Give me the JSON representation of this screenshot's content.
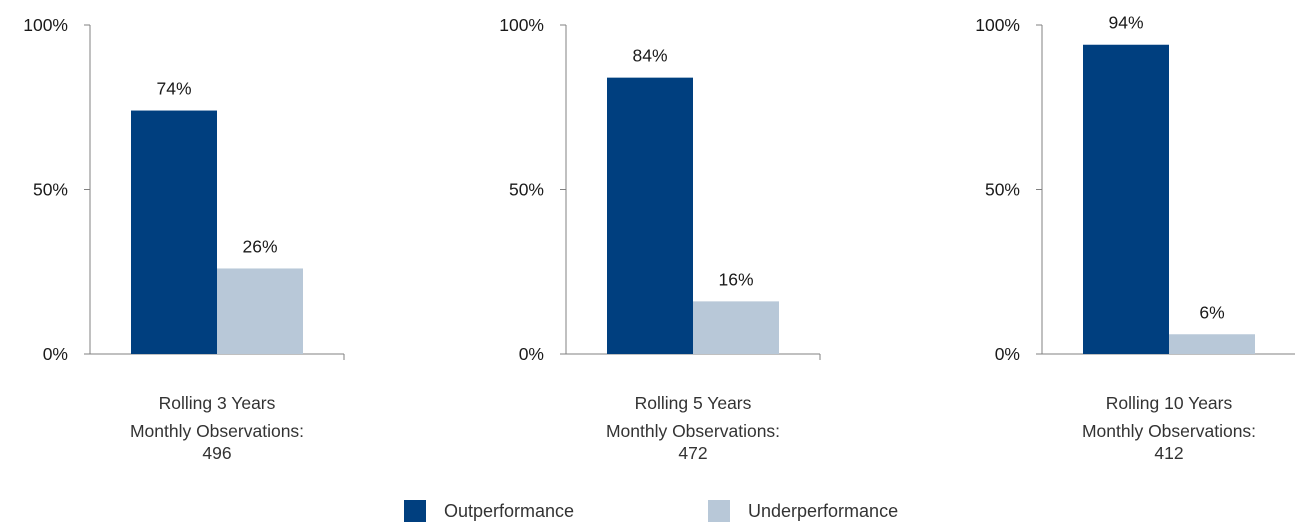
{
  "colors": {
    "outperformance": "#003f7f",
    "underperformance": "#b8c8d8",
    "axis": "#808080",
    "text": "#1a1a1a"
  },
  "legend": [
    {
      "label": "Outperformance",
      "color": "#003f7f"
    },
    {
      "label": "Underperformance",
      "color": "#b8c8d8"
    }
  ],
  "chart_data": [
    {
      "type": "bar",
      "categories": [
        "Outperformance",
        "Underperformance"
      ],
      "values": [
        74,
        26
      ],
      "data_labels": [
        "74%",
        "26%"
      ],
      "ylim": [
        0,
        100
      ],
      "yticks": [
        "0%",
        "50%",
        "100%"
      ],
      "xlabel": "Rolling 3 Years",
      "caption_line": "Monthly Observations:",
      "observations": "496"
    },
    {
      "type": "bar",
      "categories": [
        "Outperformance",
        "Underperformance"
      ],
      "values": [
        84,
        16
      ],
      "data_labels": [
        "84%",
        "16%"
      ],
      "ylim": [
        0,
        100
      ],
      "yticks": [
        "0%",
        "50%",
        "100%"
      ],
      "xlabel": "Rolling 5 Years",
      "caption_line": "Monthly Observations:",
      "observations": "472"
    },
    {
      "type": "bar",
      "categories": [
        "Outperformance",
        "Underperformance"
      ],
      "values": [
        94,
        6
      ],
      "data_labels": [
        "94%",
        "6%"
      ],
      "ylim": [
        0,
        100
      ],
      "yticks": [
        "0%",
        "50%",
        "100%"
      ],
      "xlabel": "Rolling 10 Years",
      "caption_line": "Monthly Observations:",
      "observations": "412"
    }
  ]
}
